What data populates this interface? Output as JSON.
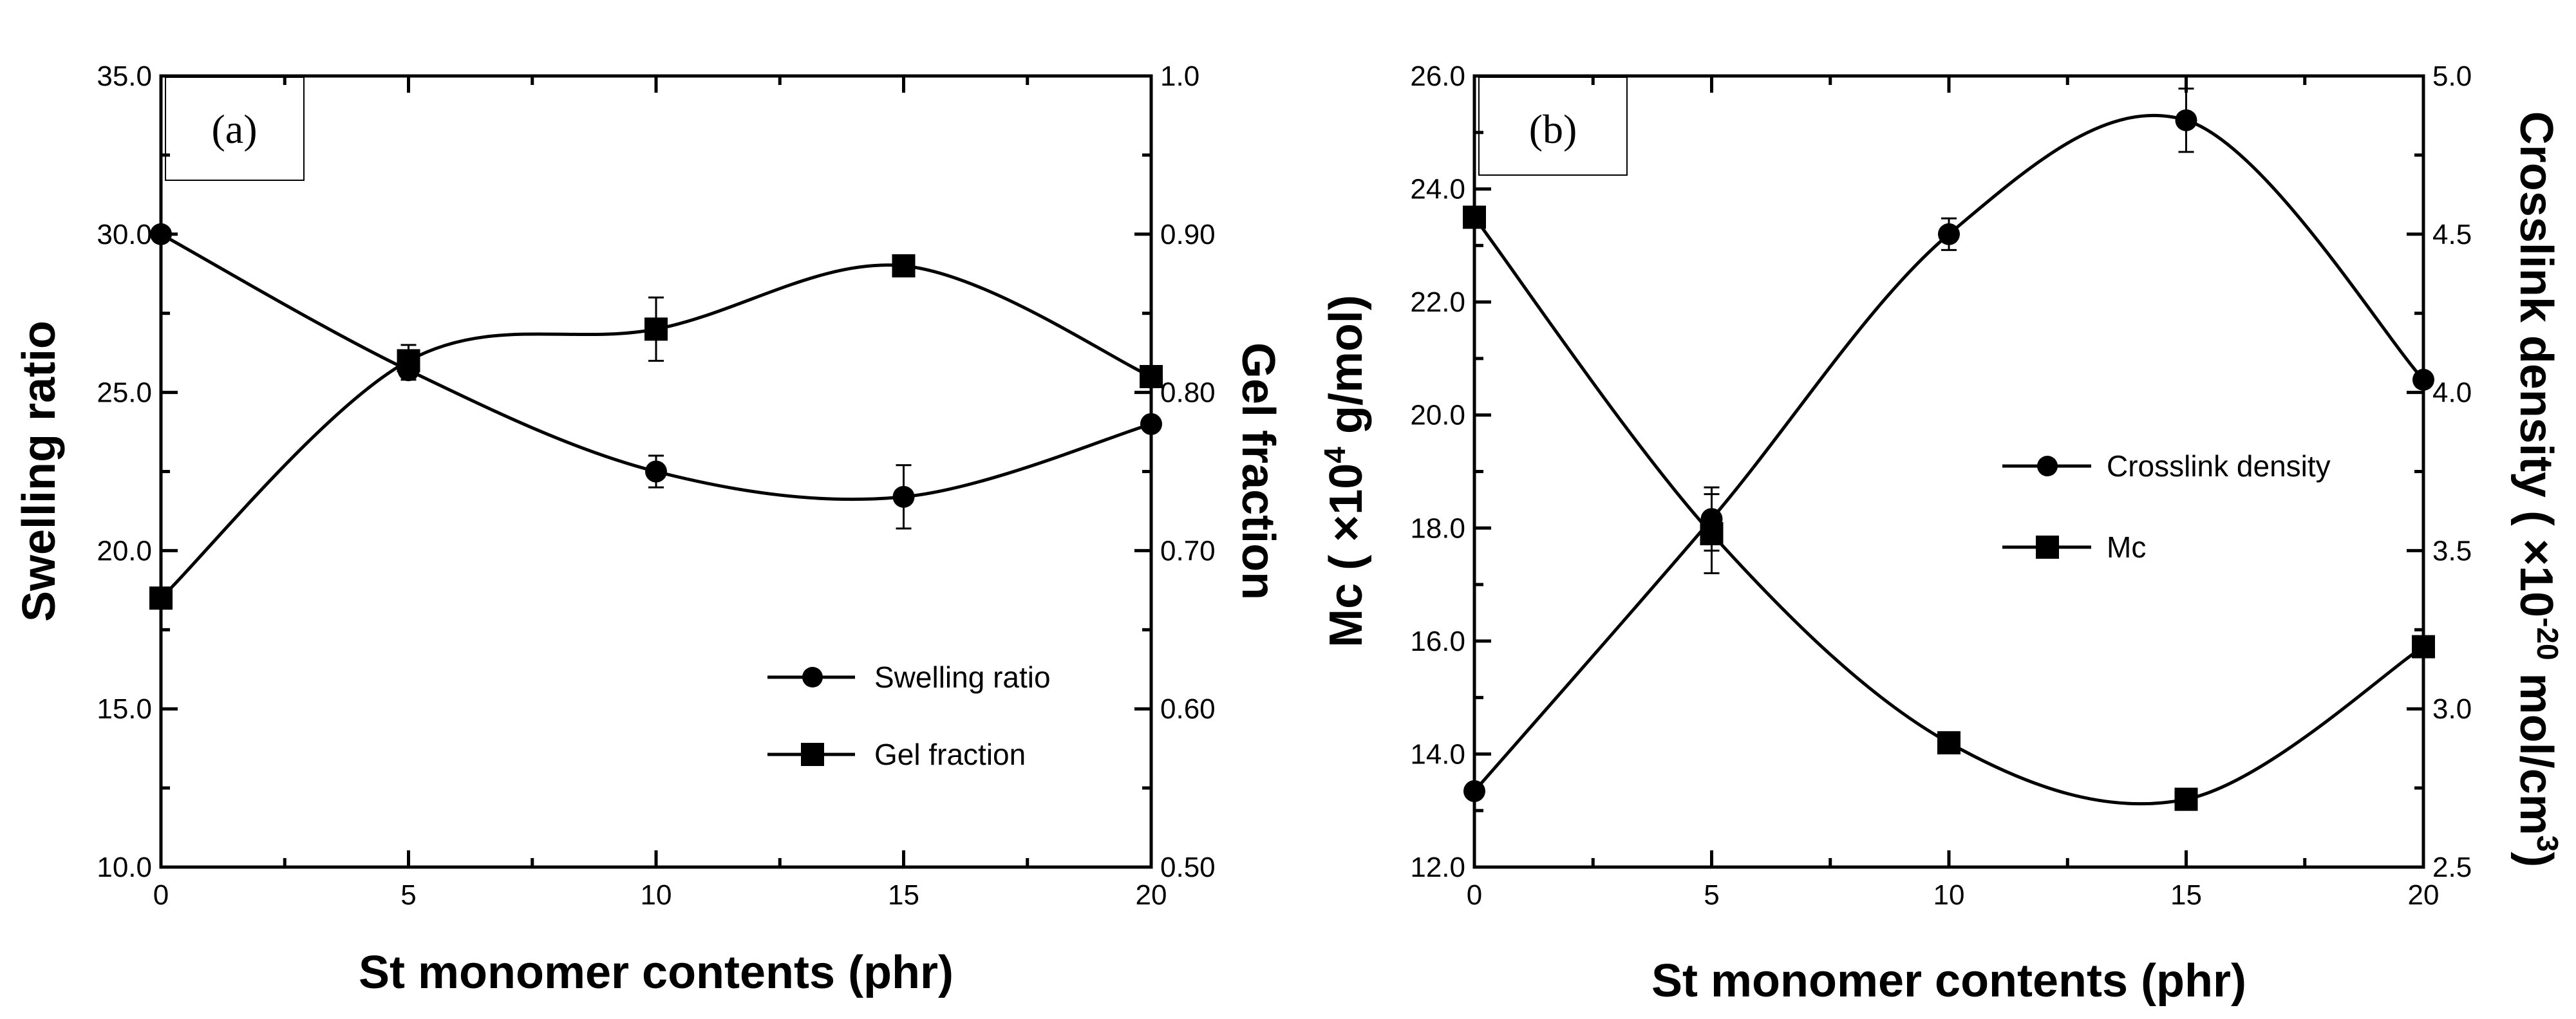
{
  "chart_data": [
    {
      "type": "line",
      "panel_label": "(a)",
      "xlabel": "St monomer contents (phr)",
      "ylabel_left": "Swelling ratio",
      "ylabel_right": "Gel fraction",
      "x_ticks": [
        "0",
        "5",
        "10",
        "15",
        "20"
      ],
      "xlim": [
        0,
        20
      ],
      "ylim_left": [
        10,
        35
      ],
      "ylim_right": [
        0.5,
        1.0
      ],
      "y_left_ticks": [
        {
          "value": 10,
          "label": "10.0"
        },
        {
          "value": 15,
          "label": "15.0"
        },
        {
          "value": 20,
          "label": "20.0"
        },
        {
          "value": 25,
          "label": "25.0"
        },
        {
          "value": 30,
          "label": "30.0"
        },
        {
          "value": 35,
          "label": "35.0"
        }
      ],
      "y_right_ticks": [
        {
          "value": 0.5,
          "label": "0.50"
        },
        {
          "value": 0.6,
          "label": "0.60"
        },
        {
          "value": 0.7,
          "label": "0.70"
        },
        {
          "value": 0.8,
          "label": "0.80"
        },
        {
          "value": 0.9,
          "label": "0.90"
        },
        {
          "value": 1.0,
          "label": "1.0"
        }
      ],
      "legend_position": "lower-right",
      "series": [
        {
          "name": "Swelling ratio",
          "marker": "circle",
          "axis": "left",
          "x": [
            0,
            5,
            10,
            15,
            20
          ],
          "values": [
            30.0,
            25.7,
            22.5,
            21.7,
            24.0
          ],
          "errors": [
            0,
            0.3,
            0.5,
            1.0,
            0
          ]
        },
        {
          "name": "Gel fraction",
          "marker": "square",
          "axis": "right",
          "x": [
            0,
            5,
            10,
            15,
            20
          ],
          "values": [
            0.67,
            0.82,
            0.84,
            0.88,
            0.81
          ],
          "errors": [
            0,
            0.01,
            0.02,
            0,
            0
          ]
        }
      ]
    },
    {
      "type": "line",
      "panel_label": "(b)",
      "xlabel": "St monomer contents (phr)",
      "ylabel_left": "Mc ( ×10",
      "ylabel_left_sup": "4",
      "ylabel_left_tail": " g/mol)",
      "ylabel_right": "Crosslink density ( ×10",
      "ylabel_right_sup": "-20",
      "ylabel_right_tail": " mol/cm",
      "ylabel_right_sup2": "3",
      "ylabel_right_end": ")",
      "x_ticks": [
        "0",
        "5",
        "10",
        "15",
        "20"
      ],
      "xlim": [
        0,
        20
      ],
      "ylim_left": [
        12,
        26
      ],
      "ylim_right": [
        2.5,
        5.0
      ],
      "y_left_ticks": [
        {
          "value": 12,
          "label": "12.0"
        },
        {
          "value": 14,
          "label": "14.0"
        },
        {
          "value": 16,
          "label": "16.0"
        },
        {
          "value": 18,
          "label": "18.0"
        },
        {
          "value": 20,
          "label": "20.0"
        },
        {
          "value": 22,
          "label": "22.0"
        },
        {
          "value": 24,
          "label": "24.0"
        },
        {
          "value": 26,
          "label": "26.0"
        }
      ],
      "y_right_ticks": [
        {
          "value": 2.5,
          "label": "2.5"
        },
        {
          "value": 3.0,
          "label": "3.0"
        },
        {
          "value": 3.5,
          "label": "3.5"
        },
        {
          "value": 4.0,
          "label": "4.0"
        },
        {
          "value": 4.5,
          "label": "4.5"
        },
        {
          "value": 5.0,
          "label": "5.0"
        }
      ],
      "legend_position": "center-right",
      "series": [
        {
          "name": "Crosslink density",
          "marker": "circle",
          "axis": "right",
          "x": [
            0,
            5,
            10,
            15,
            20
          ],
          "values": [
            2.74,
            3.6,
            4.5,
            4.86,
            4.04
          ],
          "errors": [
            0,
            0.1,
            0.05,
            0.1,
            0
          ]
        },
        {
          "name": "Mc",
          "marker": "square",
          "axis": "left",
          "x": [
            0,
            5,
            10,
            15,
            20
          ],
          "values": [
            23.5,
            17.9,
            14.2,
            13.2,
            15.9
          ],
          "errors": [
            0,
            0.7,
            0,
            0,
            0
          ]
        }
      ]
    }
  ]
}
